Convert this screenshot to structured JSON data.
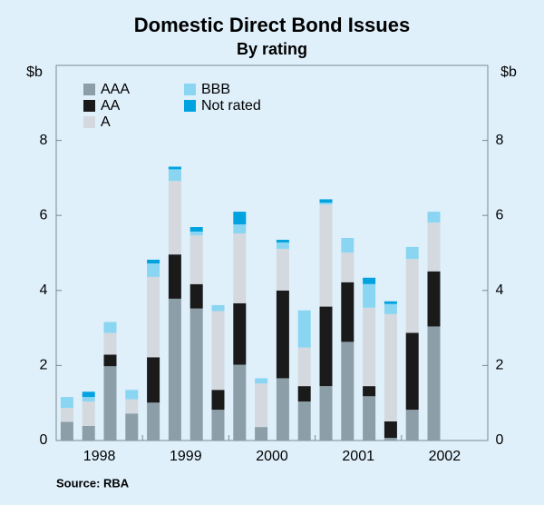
{
  "chart_data": {
    "type": "stacked_bar",
    "title": "Domestic Direct Bond Issues",
    "subtitle": "By rating",
    "y_label": "$b",
    "y2_label": "$b",
    "source": "Source: RBA",
    "categories": [
      null,
      null,
      null,
      null,
      null,
      null,
      null,
      null,
      null,
      null,
      null,
      null,
      null,
      null,
      null,
      null,
      null,
      null,
      null,
      null
    ],
    "x_group_labels": [
      "1998",
      "1999",
      "2000",
      "2001",
      "2002"
    ],
    "ylim": [
      0,
      10
    ],
    "yticks": [
      0,
      2,
      4,
      6,
      8
    ],
    "series": [
      {
        "name": "AAA",
        "color": "#8c9ea8",
        "values": [
          0.5,
          0.39,
          1.98,
          0.72,
          1.01,
          3.78,
          3.52,
          0.82,
          2.02,
          0.36,
          1.66,
          1.04,
          1.45,
          2.63,
          1.18,
          0.07,
          0.82,
          3.04,
          null,
          null
        ]
      },
      {
        "name": "AA",
        "color": "#1a1a1a",
        "values": [
          0,
          0,
          0.31,
          0,
          1.21,
          1.18,
          0.65,
          0.53,
          1.64,
          0,
          2.34,
          0.41,
          2.12,
          1.59,
          0.27,
          0.44,
          2.05,
          1.47,
          null,
          null
        ]
      },
      {
        "name": "A",
        "color": "#d3d9de",
        "values": [
          0.37,
          0.65,
          0.58,
          0.38,
          2.14,
          1.96,
          1.3,
          2.1,
          1.86,
          1.16,
          1.11,
          1.03,
          2.72,
          0.79,
          2.09,
          2.86,
          1.97,
          1.3,
          null,
          null
        ]
      },
      {
        "name": "BBB",
        "color": "#8ad6f2",
        "values": [
          0.29,
          0.12,
          0.29,
          0.25,
          0.36,
          0.31,
          0.1,
          0.16,
          0.24,
          0.14,
          0.17,
          0.99,
          0.05,
          0.39,
          0.63,
          0.27,
          0.32,
          0.29,
          null,
          null
        ]
      },
      {
        "name": "Not rated",
        "color": "#00a3df",
        "values": [
          0,
          0.14,
          0,
          0,
          0.1,
          0.07,
          0.12,
          0,
          0.34,
          0,
          0.07,
          0,
          0.09,
          0,
          0.17,
          0.07,
          0,
          0,
          null,
          null
        ]
      }
    ]
  }
}
